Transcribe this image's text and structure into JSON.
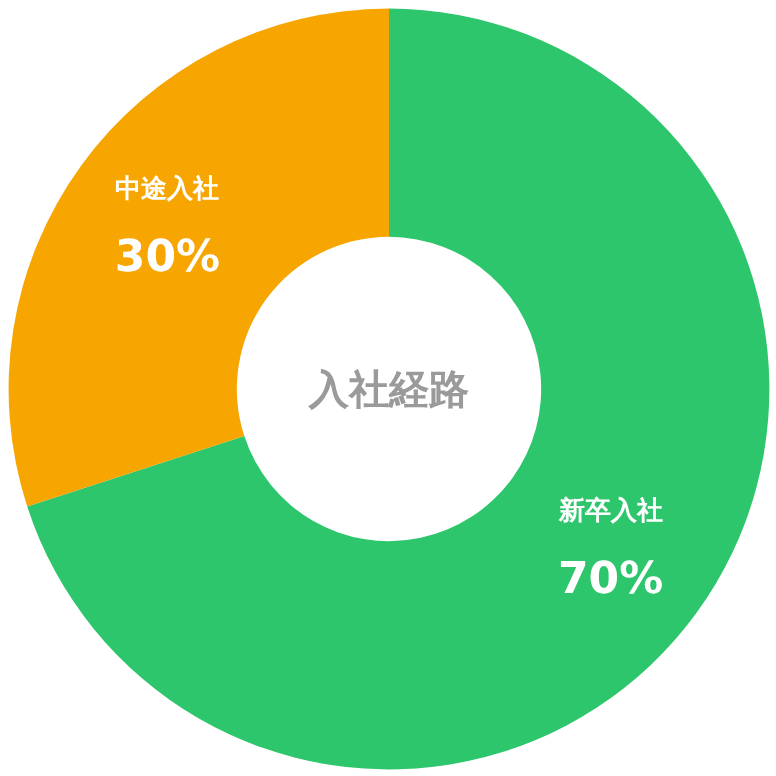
{
  "chart_data": {
    "type": "donut",
    "title": "入社経路",
    "categories": [
      "新卒入社",
      "中途入社"
    ],
    "values": [
      70,
      30
    ],
    "colors": [
      "#2ec66c",
      "#f7a500"
    ],
    "value_labels": [
      "70%",
      "30%"
    ]
  }
}
